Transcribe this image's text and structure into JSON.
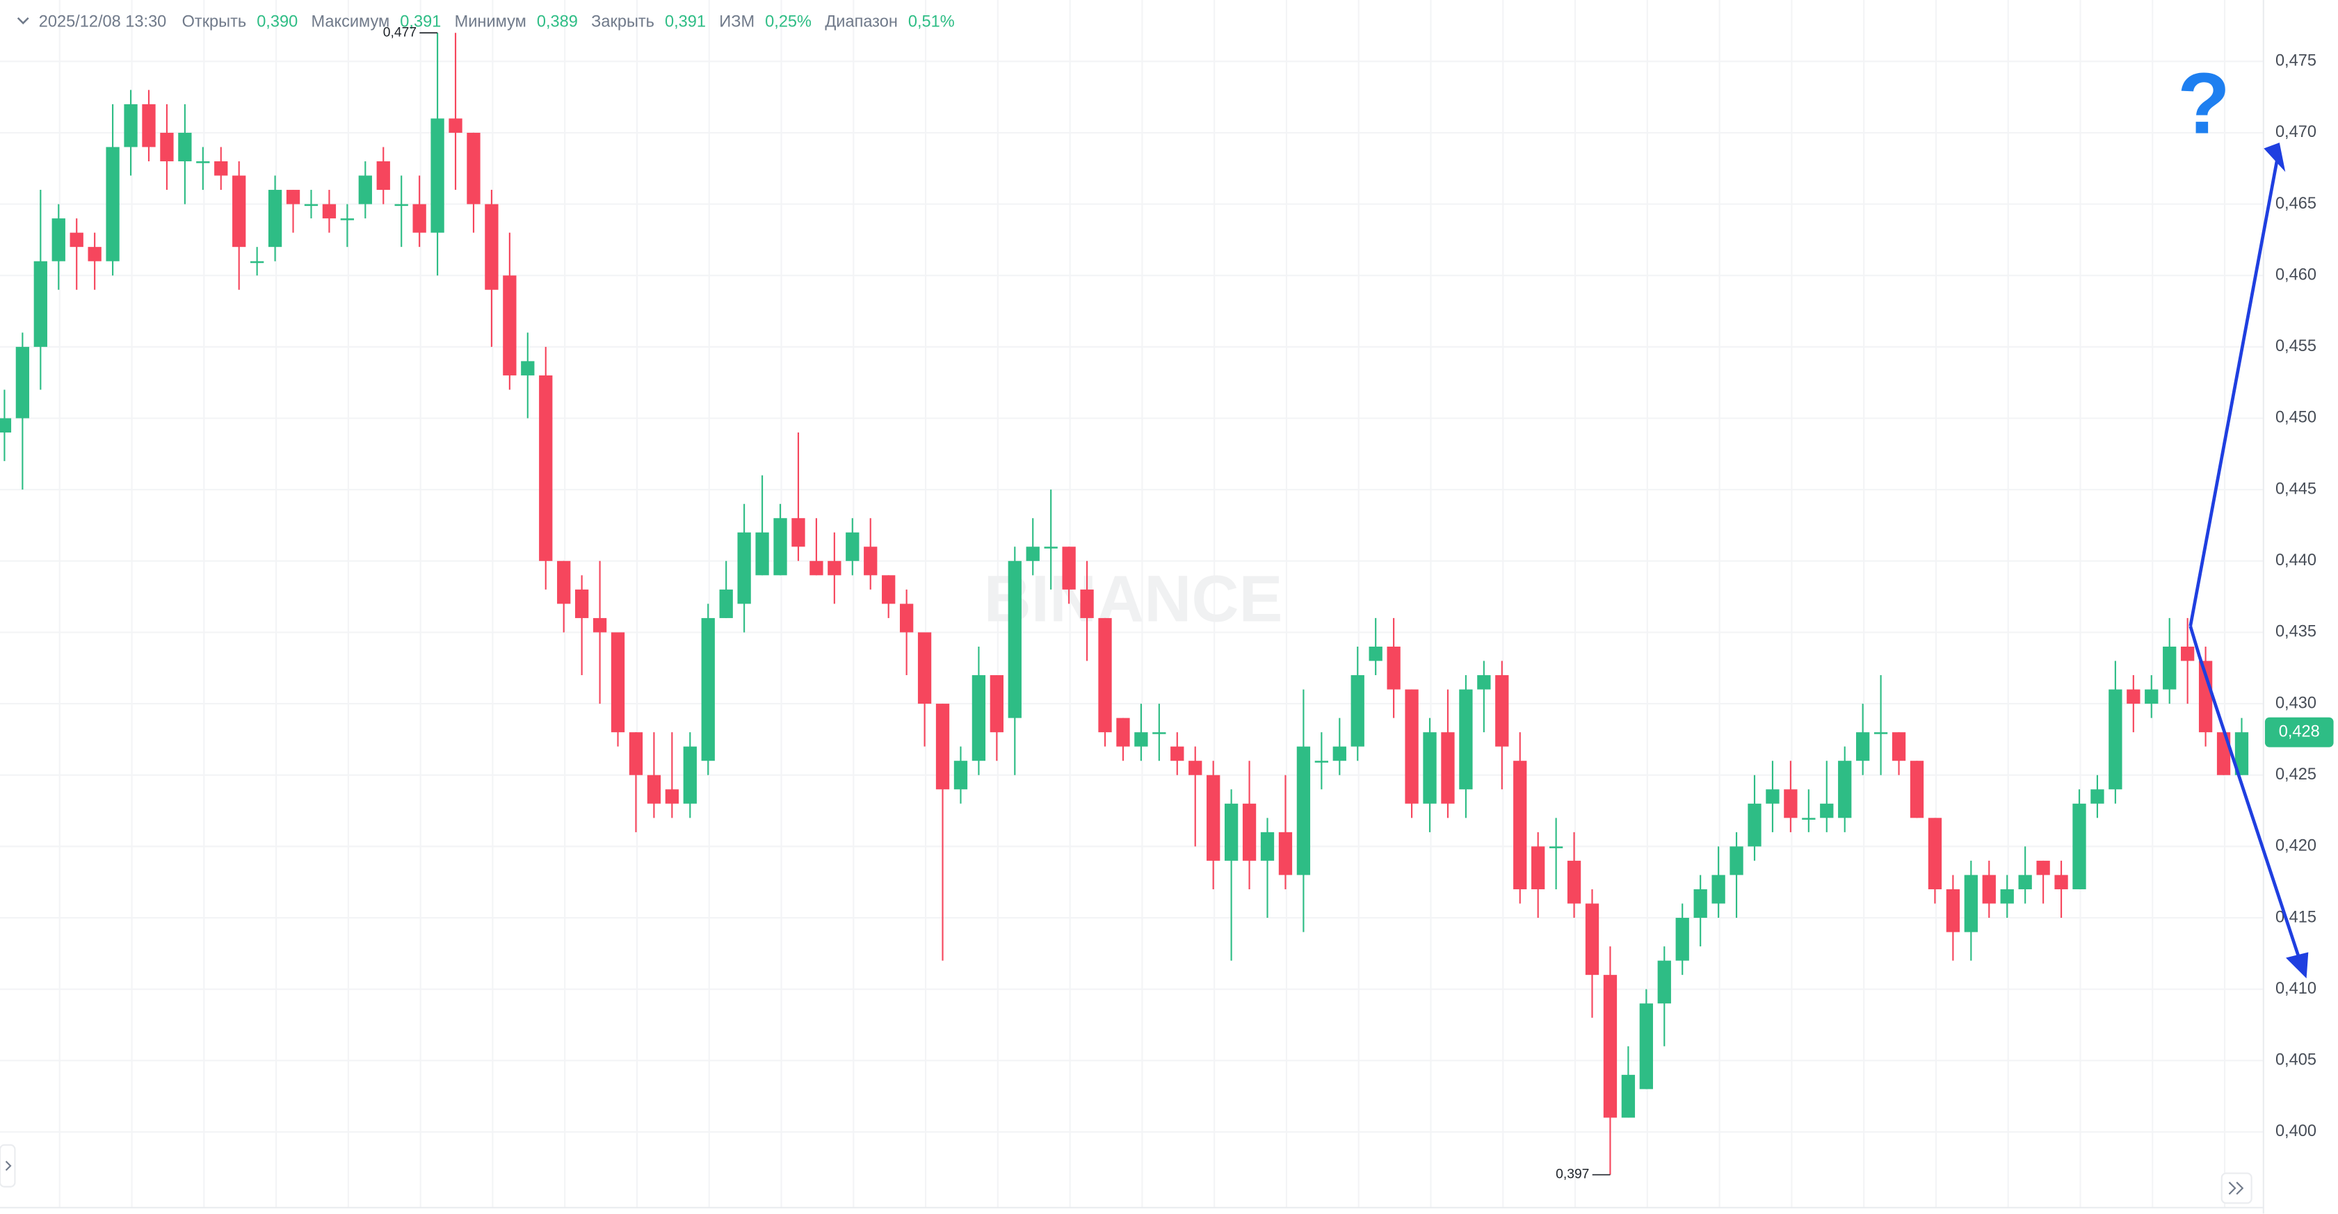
{
  "chart_data": {
    "type": "candlestick",
    "header": {
      "datetime": "2025/12/08 13:30",
      "items": [
        {
          "label": "Открыть",
          "value": "0,390"
        },
        {
          "label": "Максимум",
          "value": "0,391"
        },
        {
          "label": "Минимум",
          "value": "0,389"
        },
        {
          "label": "Закрыть",
          "value": "0,391"
        },
        {
          "label": "ИЗМ",
          "value": "0,25%"
        },
        {
          "label": "Диапазон",
          "value": "0,51%"
        }
      ]
    },
    "watermark": "BINANCE",
    "question_mark": "?",
    "up_color": "#2ebd85",
    "down_color": "#f6465d",
    "ylim": [
      0.3947,
      0.4793
    ],
    "yticks": [
      {
        "value": 0.4,
        "label": "0,400"
      },
      {
        "value": 0.405,
        "label": "0,405"
      },
      {
        "value": 0.41,
        "label": "0,410"
      },
      {
        "value": 0.415,
        "label": "0,415"
      },
      {
        "value": 0.42,
        "label": "0,420"
      },
      {
        "value": 0.425,
        "label": "0,425"
      },
      {
        "value": 0.43,
        "label": "0,430"
      },
      {
        "value": 0.435,
        "label": "0,435"
      },
      {
        "value": 0.44,
        "label": "0,440"
      },
      {
        "value": 0.445,
        "label": "0,445"
      },
      {
        "value": 0.45,
        "label": "0,450"
      },
      {
        "value": 0.455,
        "label": "0,455"
      },
      {
        "value": 0.46,
        "label": "0,460"
      },
      {
        "value": 0.465,
        "label": "0,465"
      },
      {
        "value": 0.47,
        "label": "0,470"
      },
      {
        "value": 0.475,
        "label": "0,475"
      }
    ],
    "grid": true,
    "max_marker": {
      "value": 0.477,
      "label": "0,477"
    },
    "min_marker": {
      "value": 0.397,
      "label": "0,397"
    },
    "last_price": {
      "value": 0.428,
      "label": "0,428"
    },
    "open": [
      0.449,
      0.45,
      0.455,
      0.461,
      0.463,
      0.462,
      0.461,
      0.469,
      0.472,
      0.47,
      0.468,
      0.468,
      0.468,
      0.467,
      0.461,
      0.462,
      0.466,
      0.465,
      0.465,
      0.464,
      0.465,
      0.468,
      0.465,
      0.465,
      0.463,
      0.471,
      0.47,
      0.465,
      0.46,
      0.453,
      0.453,
      0.44,
      0.438,
      0.436,
      0.435,
      0.428,
      0.425,
      0.424,
      0.423,
      0.426,
      0.436,
      0.437,
      0.439,
      0.439,
      0.443,
      0.44,
      0.44,
      0.44,
      0.441,
      0.439,
      0.437,
      0.435,
      0.43,
      0.424,
      0.426,
      0.432,
      0.429,
      0.44,
      0.441,
      0.441,
      0.438,
      0.436,
      0.429,
      0.427,
      0.428,
      0.427,
      0.426,
      0.425,
      0.419,
      0.423,
      0.419,
      0.421,
      0.418,
      0.426,
      0.426,
      0.427,
      0.433,
      0.434,
      0.431,
      0.423,
      0.428,
      0.424,
      0.431,
      0.432,
      0.426,
      0.42,
      0.42,
      0.419,
      0.416,
      0.411,
      0.401,
      0.403,
      0.409,
      0.412,
      0.415,
      0.416,
      0.418,
      0.42,
      0.423,
      0.424,
      0.422,
      0.422,
      0.422,
      0.426,
      0.428,
      0.428,
      0.426,
      0.422,
      0.417,
      0.414,
      0.418,
      0.416,
      0.417,
      0.419,
      0.418,
      0.417,
      0.423,
      0.424,
      0.431,
      0.43,
      0.431,
      0.434,
      0.433,
      0.428,
      0.425
    ],
    "high": [
      0.452,
      0.456,
      0.466,
      0.465,
      0.464,
      0.463,
      0.472,
      0.473,
      0.473,
      0.472,
      0.472,
      0.469,
      0.469,
      0.468,
      0.462,
      0.467,
      0.466,
      0.466,
      0.466,
      0.465,
      0.468,
      0.469,
      0.467,
      0.467,
      0.477,
      0.477,
      0.47,
      0.466,
      0.463,
      0.456,
      0.455,
      0.44,
      0.439,
      0.44,
      0.435,
      0.428,
      0.428,
      0.428,
      0.428,
      0.437,
      0.44,
      0.444,
      0.446,
      0.444,
      0.449,
      0.443,
      0.442,
      0.443,
      0.443,
      0.439,
      0.438,
      0.435,
      0.43,
      0.427,
      0.434,
      0.432,
      0.441,
      0.443,
      0.445,
      0.441,
      0.44,
      0.436,
      0.429,
      0.43,
      0.43,
      0.428,
      0.427,
      0.426,
      0.424,
      0.426,
      0.422,
      0.425,
      0.431,
      0.428,
      0.429,
      0.434,
      0.436,
      0.436,
      0.431,
      0.429,
      0.431,
      0.432,
      0.433,
      0.433,
      0.428,
      0.421,
      0.422,
      0.421,
      0.417,
      0.413,
      0.406,
      0.41,
      0.413,
      0.416,
      0.418,
      0.42,
      0.421,
      0.425,
      0.426,
      0.426,
      0.424,
      0.426,
      0.427,
      0.43,
      0.432,
      0.428,
      0.426,
      0.422,
      0.418,
      0.419,
      0.419,
      0.418,
      0.42,
      0.419,
      0.419,
      0.424,
      0.425,
      0.433,
      0.432,
      0.432,
      0.436,
      0.436,
      0.434,
      0.428,
      0.429
    ],
    "low": [
      0.447,
      0.445,
      0.452,
      0.459,
      0.459,
      0.459,
      0.46,
      0.467,
      0.468,
      0.466,
      0.465,
      0.466,
      0.466,
      0.459,
      0.46,
      0.461,
      0.463,
      0.464,
      0.463,
      0.462,
      0.464,
      0.465,
      0.462,
      0.462,
      0.46,
      0.466,
      0.463,
      0.455,
      0.452,
      0.45,
      0.438,
      0.435,
      0.432,
      0.43,
      0.427,
      0.421,
      0.422,
      0.422,
      0.422,
      0.425,
      0.436,
      0.435,
      0.439,
      0.439,
      0.44,
      0.439,
      0.437,
      0.439,
      0.438,
      0.436,
      0.432,
      0.427,
      0.412,
      0.423,
      0.425,
      0.426,
      0.425,
      0.439,
      0.438,
      0.437,
      0.433,
      0.427,
      0.426,
      0.426,
      0.426,
      0.425,
      0.42,
      0.417,
      0.412,
      0.417,
      0.415,
      0.417,
      0.414,
      0.424,
      0.425,
      0.426,
      0.432,
      0.429,
      0.422,
      0.421,
      0.422,
      0.422,
      0.428,
      0.424,
      0.416,
      0.415,
      0.417,
      0.415,
      0.408,
      0.397,
      0.401,
      0.403,
      0.406,
      0.411,
      0.413,
      0.415,
      0.415,
      0.419,
      0.421,
      0.421,
      0.421,
      0.421,
      0.421,
      0.425,
      0.425,
      0.425,
      0.422,
      0.416,
      0.412,
      0.412,
      0.415,
      0.415,
      0.416,
      0.416,
      0.415,
      0.417,
      0.422,
      0.423,
      0.428,
      0.429,
      0.43,
      0.43,
      0.427,
      0.425,
      0.425
    ],
    "close": [
      0.45,
      0.455,
      0.461,
      0.464,
      0.462,
      0.461,
      0.469,
      0.472,
      0.469,
      0.468,
      0.47,
      0.468,
      0.467,
      0.462,
      0.461,
      0.466,
      0.465,
      0.465,
      0.464,
      0.464,
      0.467,
      0.466,
      0.465,
      0.463,
      0.471,
      0.47,
      0.465,
      0.459,
      0.453,
      0.454,
      0.44,
      0.437,
      0.436,
      0.435,
      0.428,
      0.425,
      0.423,
      0.423,
      0.427,
      0.436,
      0.438,
      0.442,
      0.442,
      0.443,
      0.441,
      0.439,
      0.439,
      0.442,
      0.439,
      0.437,
      0.435,
      0.43,
      0.424,
      0.426,
      0.432,
      0.428,
      0.44,
      0.441,
      0.441,
      0.438,
      0.436,
      0.428,
      0.427,
      0.428,
      0.428,
      0.426,
      0.425,
      0.419,
      0.423,
      0.419,
      0.421,
      0.418,
      0.427,
      0.426,
      0.427,
      0.432,
      0.434,
      0.431,
      0.423,
      0.428,
      0.423,
      0.431,
      0.432,
      0.427,
      0.417,
      0.417,
      0.42,
      0.416,
      0.411,
      0.401,
      0.404,
      0.409,
      0.412,
      0.415,
      0.417,
      0.418,
      0.42,
      0.423,
      0.424,
      0.422,
      0.422,
      0.423,
      0.426,
      0.428,
      0.428,
      0.426,
      0.422,
      0.417,
      0.414,
      0.418,
      0.416,
      0.417,
      0.418,
      0.418,
      0.417,
      0.423,
      0.424,
      0.431,
      0.43,
      0.431,
      0.434,
      0.433,
      0.428,
      0.425,
      0.428
    ]
  }
}
